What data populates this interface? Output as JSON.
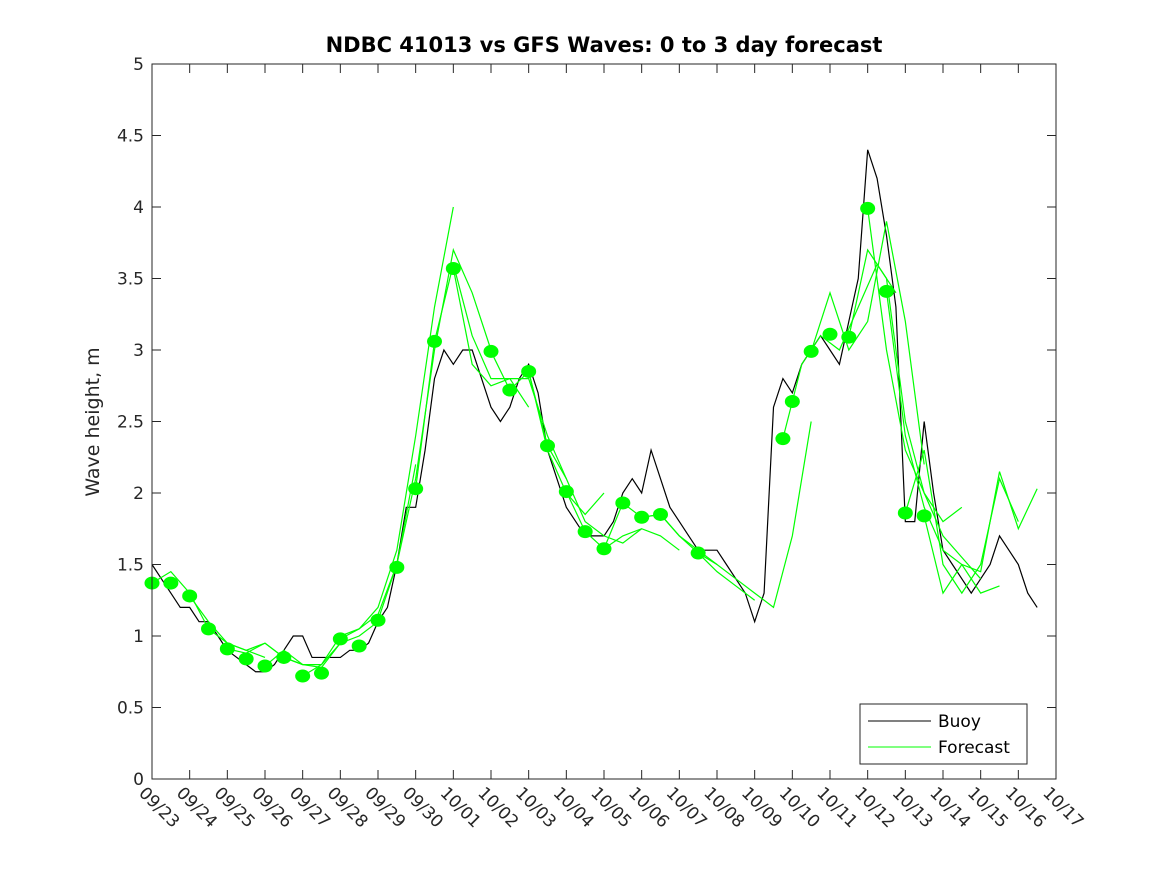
{
  "chart_data": {
    "type": "line",
    "title": "NDBC 41013 vs GFS Waves: 0 to 3 day forecast",
    "xlabel": "",
    "ylabel": "Wave height, m",
    "ylim": [
      0,
      5
    ],
    "xlim_days": [
      0,
      24
    ],
    "yticks": [
      "0",
      "0.5",
      "1",
      "1.5",
      "2",
      "2.5",
      "3",
      "3.5",
      "4",
      "4.5",
      "5"
    ],
    "xticks": [
      "09/23",
      "09/24",
      "09/25",
      "09/26",
      "09/27",
      "09/28",
      "09/29",
      "09/30",
      "10/01",
      "10/02",
      "10/03",
      "10/04",
      "10/05",
      "10/06",
      "10/07",
      "10/08",
      "10/09",
      "10/10",
      "10/11",
      "10/12",
      "10/13",
      "10/14",
      "10/15",
      "10/16",
      "10/17"
    ],
    "legend": {
      "placement": "bottom-right",
      "entries": [
        "Buoy",
        "Forecast"
      ]
    },
    "colors": {
      "buoy": "#000000",
      "forecast": "#00ff00"
    },
    "buoy": {
      "name": "Buoy",
      "step_days": 0.25,
      "values": [
        1.5,
        1.4,
        1.3,
        1.2,
        1.2,
        1.1,
        1.1,
        1.0,
        0.9,
        0.85,
        0.8,
        0.75,
        0.75,
        0.8,
        0.9,
        1.0,
        1.0,
        0.85,
        0.85,
        0.85,
        0.85,
        0.9,
        0.9,
        0.95,
        1.1,
        1.2,
        1.5,
        1.9,
        1.9,
        2.3,
        2.8,
        3.0,
        2.9,
        3.0,
        3.0,
        2.8,
        2.6,
        2.5,
        2.6,
        2.8,
        2.9,
        2.7,
        2.3,
        2.1,
        1.9,
        1.8,
        1.7,
        1.7,
        1.7,
        1.8,
        2.0,
        2.1,
        2.0,
        2.3,
        2.1,
        1.9,
        1.8,
        1.7,
        1.6,
        1.6,
        1.6,
        1.5,
        1.4,
        1.3,
        1.1,
        1.3,
        2.6,
        2.8,
        2.7,
        2.9,
        3.0,
        3.1,
        3.0,
        2.9,
        3.2,
        3.5,
        4.4,
        4.2,
        3.8,
        3.3,
        1.8,
        1.8,
        2.5,
        2.0,
        1.6,
        1.5,
        1.4,
        1.3,
        1.4,
        1.5,
        1.7,
        1.6,
        1.5,
        1.3,
        1.2
      ]
    },
    "forecast_runs": [
      {
        "start_day": 0,
        "step_days": 0.5,
        "values": [
          1.37,
          1.45,
          1.3,
          1.05,
          0.95,
          0.9,
          0.85
        ]
      },
      {
        "start_day": 1,
        "step_days": 0.5,
        "values": [
          1.28,
          1.1,
          0.95,
          0.9,
          0.95,
          0.85,
          0.8
        ]
      },
      {
        "start_day": 2,
        "step_days": 0.5,
        "values": [
          0.91,
          0.88,
          0.95,
          0.85,
          0.8,
          0.8,
          0.95
        ]
      },
      {
        "start_day": 3,
        "step_days": 0.5,
        "values": [
          0.79,
          0.9,
          0.8,
          0.78,
          0.95,
          1.0,
          1.1
        ]
      },
      {
        "start_day": 4,
        "step_days": 0.5,
        "values": [
          0.72,
          0.8,
          1.0,
          1.05,
          1.15,
          1.5,
          2.2
        ]
      },
      {
        "start_day": 5,
        "step_days": 0.5,
        "values": [
          0.98,
          1.05,
          1.2,
          1.6,
          2.4,
          3.3,
          4.0
        ]
      },
      {
        "start_day": 6,
        "step_days": 0.5,
        "values": [
          1.11,
          1.5,
          2.1,
          3.0,
          3.7,
          3.4,
          3.0
        ]
      },
      {
        "start_day": 7,
        "step_days": 0.5,
        "values": [
          2.03,
          3.06,
          3.6,
          3.1,
          2.8,
          2.8,
          2.6
        ]
      },
      {
        "start_day": 8,
        "step_days": 0.5,
        "values": [
          3.57,
          2.9,
          2.75,
          2.8,
          2.8,
          2.4,
          2.1
        ]
      },
      {
        "start_day": 9,
        "step_days": 0.5,
        "values": [
          2.99,
          2.72,
          2.85,
          2.3,
          2.0,
          1.85,
          2.0
        ]
      },
      {
        "start_day": 10,
        "step_days": 0.5,
        "values": [
          2.85,
          2.33,
          2.1,
          1.8,
          1.7,
          1.65,
          1.75
        ]
      },
      {
        "start_day": 11,
        "step_days": 0.5,
        "values": [
          2.01,
          1.73,
          1.61,
          1.7,
          1.75,
          1.7,
          1.6
        ]
      },
      {
        "start_day": 12,
        "step_days": 0.5,
        "values": [
          1.61,
          1.93,
          1.83,
          1.85,
          1.7,
          1.6,
          1.5
        ]
      },
      {
        "start_day": 13,
        "step_days": 0.5,
        "values": [
          1.83,
          1.85,
          1.7,
          1.58,
          1.45,
          1.35,
          1.25
        ]
      },
      {
        "start_day": 14.5,
        "step_days": 0.5,
        "values": [
          1.58,
          1.5,
          1.4,
          1.3,
          1.2,
          1.7,
          2.5
        ]
      },
      {
        "start_day": 16.75,
        "step_days": 0.5,
        "values": [
          2.38,
          2.9,
          3.1,
          3.0,
          3.3,
          3.6,
          3.4
        ]
      },
      {
        "start_day": 17.5,
        "step_days": 0.5,
        "values": [
          2.99,
          3.4,
          3.0,
          3.2,
          3.9,
          3.2,
          2.2
        ]
      },
      {
        "start_day": 18.5,
        "step_days": 0.5,
        "values": [
          3.09,
          3.7,
          3.5,
          2.5,
          2.0,
          1.8,
          1.9
        ]
      },
      {
        "start_day": 19,
        "step_days": 0.5,
        "values": [
          3.99,
          3.0,
          2.3,
          2.0,
          1.7,
          1.55,
          1.4
        ]
      },
      {
        "start_day": 19.5,
        "step_days": 0.5,
        "values": [
          3.41,
          2.4,
          1.9,
          1.6,
          1.5,
          1.3,
          1.35
        ]
      },
      {
        "start_day": 20,
        "step_days": 0.5,
        "values": [
          1.86,
          2.3,
          1.5,
          1.3,
          1.5,
          2.1,
          1.8
        ]
      },
      {
        "start_day": 20.5,
        "step_days": 0.5,
        "values": [
          1.84,
          1.3,
          1.5,
          1.45,
          2.15,
          1.75,
          2.03
        ]
      }
    ],
    "analysis_points": [
      [
        0,
        1.37
      ],
      [
        0.5,
        1.37
      ],
      [
        1,
        1.28
      ],
      [
        1.5,
        1.05
      ],
      [
        2,
        0.91
      ],
      [
        2.5,
        0.84
      ],
      [
        3,
        0.79
      ],
      [
        3.5,
        0.85
      ],
      [
        4,
        0.72
      ],
      [
        4.5,
        0.74
      ],
      [
        5,
        0.98
      ],
      [
        5.5,
        0.93
      ],
      [
        6,
        1.11
      ],
      [
        6.5,
        1.48
      ],
      [
        7,
        2.03
      ],
      [
        7.5,
        3.06
      ],
      [
        8,
        3.57
      ],
      [
        9,
        2.99
      ],
      [
        9.5,
        2.72
      ],
      [
        10,
        2.85
      ],
      [
        10.5,
        2.33
      ],
      [
        11,
        2.01
      ],
      [
        11.5,
        1.73
      ],
      [
        12,
        1.61
      ],
      [
        12.5,
        1.93
      ],
      [
        13,
        1.83
      ],
      [
        13.5,
        1.85
      ],
      [
        14.5,
        1.58
      ],
      [
        16.75,
        2.38
      ],
      [
        17,
        2.64
      ],
      [
        17.5,
        2.99
      ],
      [
        18,
        3.11
      ],
      [
        18.5,
        3.09
      ],
      [
        19,
        3.99
      ],
      [
        19.5,
        3.41
      ],
      [
        20,
        1.86
      ],
      [
        20.5,
        1.84
      ]
    ]
  }
}
